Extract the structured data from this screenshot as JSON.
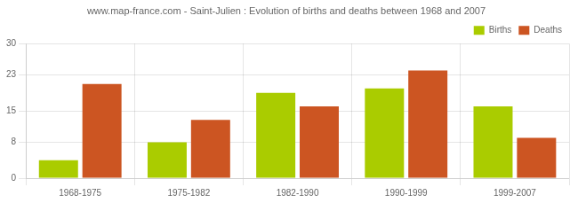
{
  "chart_data": {
    "type": "bar",
    "title": "www.map-france.com - Saint-Julien : Evolution of births and deaths between 1968 and 2007",
    "categories": [
      "1968-1975",
      "1975-1982",
      "1982-1990",
      "1990-1999",
      "1999-2007"
    ],
    "series": [
      {
        "name": "Births",
        "color": "#aacc00",
        "values": [
          4,
          8,
          19,
          20,
          16
        ]
      },
      {
        "name": "Deaths",
        "color": "#cc5522",
        "values": [
          21,
          13,
          16,
          24,
          9
        ]
      }
    ],
    "ylim": [
      0,
      30
    ],
    "yticks": [
      0,
      8,
      15,
      23,
      30
    ],
    "grid": true,
    "legend": "upper right"
  }
}
